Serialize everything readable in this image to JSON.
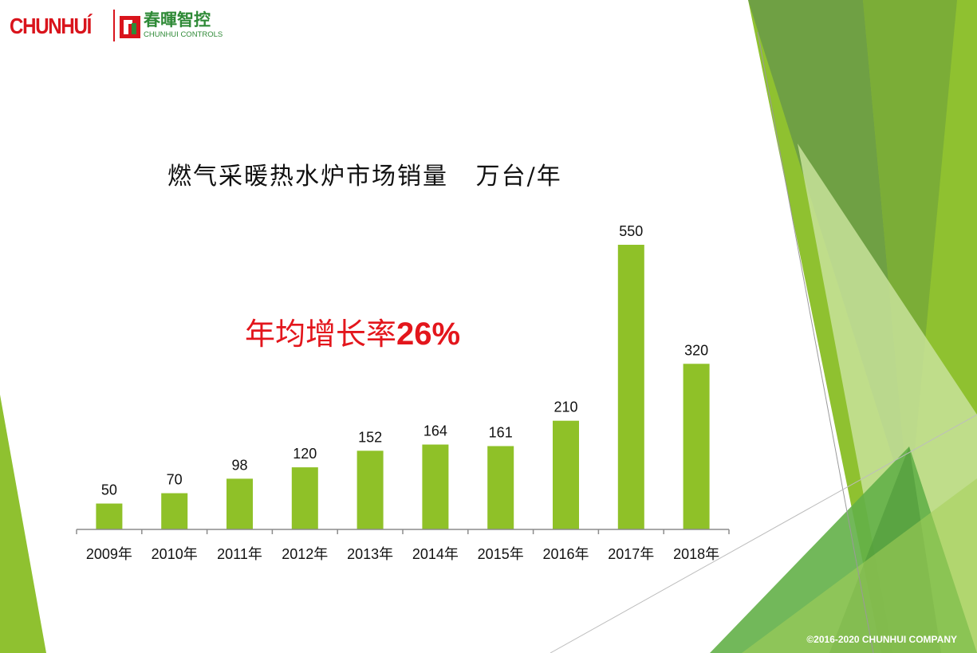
{
  "logo": {
    "brand_en": "CHUNHUÍ",
    "brand_cn": "春暉智控",
    "brand_sub": "CHUNHUI CONTROLS"
  },
  "colors": {
    "bar": "#8fc128",
    "brand_red": "#d9141c",
    "brand_green": "#2f8a37",
    "highlight_red": "#e3161c"
  },
  "annotation": {
    "text": "年均增长率",
    "value": "26%"
  },
  "footer": {
    "copyright": "©2016-2020 CHUNHUI COMPANY"
  },
  "chart_data": {
    "type": "bar",
    "title": "燃气采暖热水炉市场销量   万台/年",
    "categories": [
      "2009年",
      "2010年",
      "2011年",
      "2012年",
      "2013年",
      "2014年",
      "2015年",
      "2016年",
      "2017年",
      "2018年"
    ],
    "values": [
      50,
      70,
      98,
      120,
      152,
      164,
      161,
      210,
      550,
      320
    ],
    "data_labels": true,
    "grid": false,
    "legend": "none",
    "ylim": [
      0,
      550
    ]
  }
}
